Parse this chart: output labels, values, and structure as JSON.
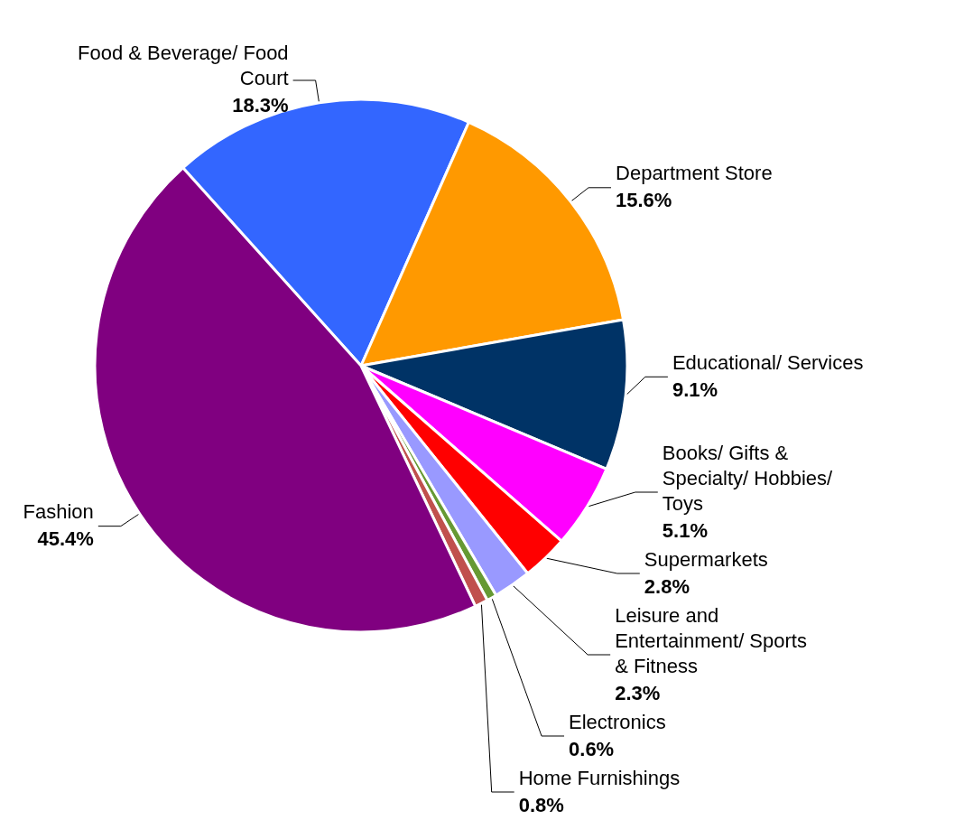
{
  "chart_data": {
    "type": "pie",
    "categories": [
      "Food & Beverage/ Food Court",
      "Department Store",
      "Educational/ Services",
      "Books/ Gifts & Specialty/ Hobbies/ Toys",
      "Supermarkets",
      "Leisure and Entertainment/ Sports & Fitness",
      "Electronics",
      "Home Furnishings",
      "Fashion"
    ],
    "values": [
      18.3,
      15.6,
      9.1,
      5.1,
      2.8,
      2.3,
      0.6,
      0.8,
      45.4
    ],
    "colors": [
      "#3366ff",
      "#ff9900",
      "#003366",
      "#ff00ff",
      "#ff0000",
      "#9999ff",
      "#669933",
      "#c0504d",
      "#800080"
    ],
    "value_labels": [
      "18.3%",
      "15.6%",
      "9.1%",
      "5.1%",
      "2.8%",
      "2.3%",
      "0.6%",
      "0.8%",
      "45.4%"
    ],
    "legend": false
  }
}
